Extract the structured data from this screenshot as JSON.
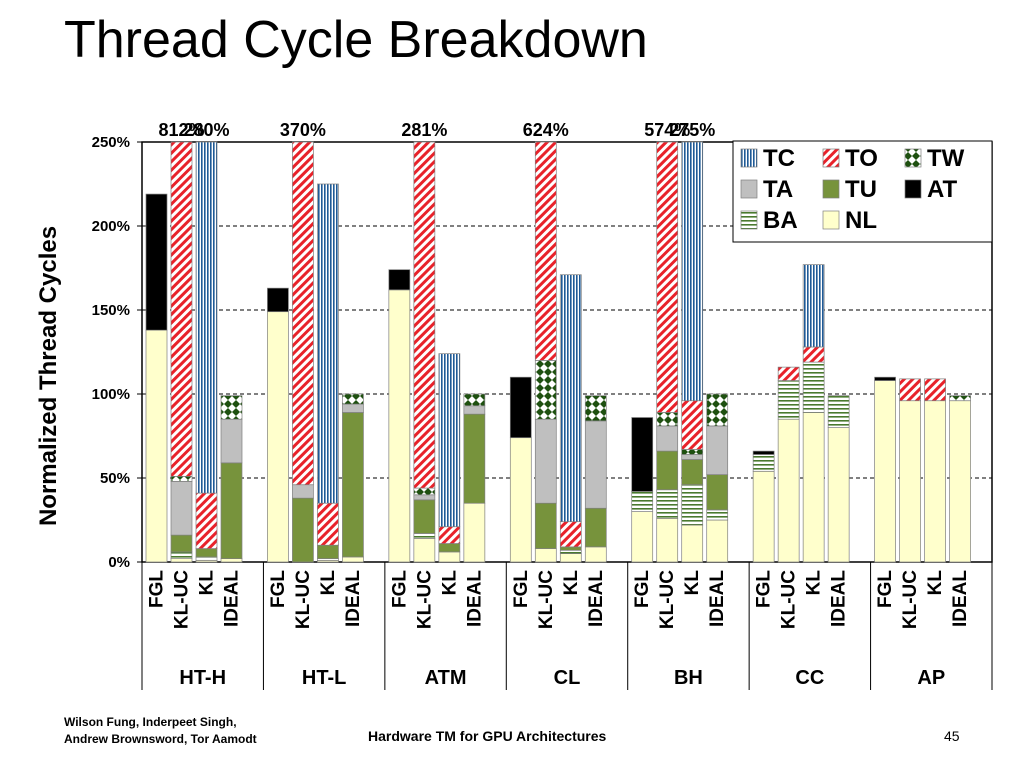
{
  "slide": {
    "title": "Thread Cycle Breakdown",
    "footer_authors_line1": "Wilson Fung, Inderpeet Singh,",
    "footer_authors_line2": "Andrew Brownsword, Tor Aamodt",
    "footer_title": "Hardware TM for GPU Architectures",
    "page_number": "45"
  },
  "chart_data": {
    "type": "bar",
    "stacked": true,
    "title": "",
    "ylabel": "Normalized Thread Cycles",
    "ylim": [
      0,
      250
    ],
    "yticks": [
      0,
      50,
      100,
      150,
      200,
      250
    ],
    "ytick_labels": [
      "0%",
      "50%",
      "100%",
      "150%",
      "200%",
      "250%"
    ],
    "grid": "horizontal-dashed",
    "legend_position": "top-right",
    "configs": [
      "FGL",
      "KL-UC",
      "KL",
      "IDEAL"
    ],
    "components": [
      {
        "key": "NL",
        "color": "#ffffcc",
        "pattern": "solid"
      },
      {
        "key": "BA",
        "color": "#4a7a2e",
        "pattern": "hstripe"
      },
      {
        "key": "TU",
        "color": "#77933c",
        "pattern": "solid"
      },
      {
        "key": "TA",
        "color": "#bfbfbf",
        "pattern": "solid"
      },
      {
        "key": "AT",
        "color": "#000000",
        "pattern": "solid"
      },
      {
        "key": "TW",
        "color": "#1e5010",
        "pattern": "diamond"
      },
      {
        "key": "TO",
        "color": "#e8222a",
        "pattern": "diag"
      },
      {
        "key": "TC",
        "color": "#1f5a96",
        "pattern": "vstripe"
      }
    ],
    "legend_order": [
      "TC",
      "TO",
      "TW",
      "TA",
      "TU",
      "AT",
      "BA",
      "NL"
    ],
    "groups": [
      {
        "name": "HT-H",
        "bars": [
          {
            "config": "FGL",
            "NL": 138,
            "AT": 81
          },
          {
            "config": "KL-UC",
            "NL": 2,
            "TU": 10,
            "TA": 32,
            "BA": 4,
            "TW": 3,
            "TO": 761,
            "annotation": "812%"
          },
          {
            "config": "KL",
            "NL": 1,
            "TU": 5,
            "BA": 2,
            "TO": 33,
            "TC": 239,
            "annotation": "280%"
          },
          {
            "config": "IDEAL",
            "NL": 2,
            "TU": 57,
            "TA": 26,
            "TW": 14
          }
        ]
      },
      {
        "name": "HT-L",
        "bars": [
          {
            "config": "FGL",
            "NL": 149,
            "AT": 14
          },
          {
            "config": "KL-UC",
            "TU": 38,
            "TA": 8,
            "TO": 324,
            "annotation": "370%"
          },
          {
            "config": "KL",
            "NL": 1,
            "TU": 8,
            "BA": 1,
            "TO": 25,
            "TC": 190
          },
          {
            "config": "IDEAL",
            "NL": 3,
            "TU": 86,
            "TA": 5,
            "TW": 6
          }
        ]
      },
      {
        "name": "ATM",
        "bars": [
          {
            "config": "FGL",
            "NL": 162,
            "AT": 12
          },
          {
            "config": "KL-UC",
            "NL": 14,
            "TU": 20,
            "BA": 3,
            "TA": 3,
            "TW": 4,
            "TO": 237,
            "annotation": "281%"
          },
          {
            "config": "KL",
            "NL": 6,
            "TU": 5,
            "TO": 10,
            "TC": 103
          },
          {
            "config": "IDEAL",
            "NL": 35,
            "TU": 53,
            "TA": 5,
            "TW": 7
          }
        ]
      },
      {
        "name": "CL",
        "bars": [
          {
            "config": "FGL",
            "NL": 74,
            "AT": 36
          },
          {
            "config": "KL-UC",
            "NL": 8,
            "TU": 27,
            "TA": 50,
            "TW": 35,
            "TO": 504,
            "annotation": "624%"
          },
          {
            "config": "KL",
            "NL": 5,
            "TU": 2,
            "BA": 2,
            "TO": 15,
            "TC": 147
          },
          {
            "config": "IDEAL",
            "NL": 9,
            "TU": 23,
            "TA": 52,
            "TW": 15
          }
        ]
      },
      {
        "name": "BH",
        "bars": [
          {
            "config": "FGL",
            "NL": 30,
            "BA": 12,
            "AT": 44
          },
          {
            "config": "KL-UC",
            "NL": 26,
            "BA": 17,
            "TU": 23,
            "TA": 15,
            "TW": 8,
            "TO": 485,
            "annotation": "574%"
          },
          {
            "config": "KL",
            "NL": 22,
            "BA": 24,
            "TU": 15,
            "TA": 3,
            "TW": 3,
            "TO": 29,
            "TC": 179,
            "annotation": "275%"
          },
          {
            "config": "IDEAL",
            "NL": 25,
            "BA": 6,
            "TU": 21,
            "TA": 29,
            "TW": 19
          }
        ]
      },
      {
        "name": "CC",
        "bars": [
          {
            "config": "FGL",
            "NL": 54,
            "BA": 10,
            "AT": 2
          },
          {
            "config": "KL-UC",
            "NL": 85,
            "BA": 23,
            "TO": 8
          },
          {
            "config": "KL",
            "NL": 89,
            "BA": 30,
            "TO": 9,
            "TC": 49
          },
          {
            "config": "IDEAL",
            "NL": 80,
            "BA": 19
          }
        ]
      },
      {
        "name": "AP",
        "bars": [
          {
            "config": "FGL",
            "NL": 108,
            "AT": 2
          },
          {
            "config": "KL-UC",
            "NL": 96,
            "TO": 13
          },
          {
            "config": "KL",
            "NL": 96,
            "TO": 13
          },
          {
            "config": "IDEAL",
            "NL": 96,
            "TW": 3
          }
        ]
      }
    ]
  }
}
